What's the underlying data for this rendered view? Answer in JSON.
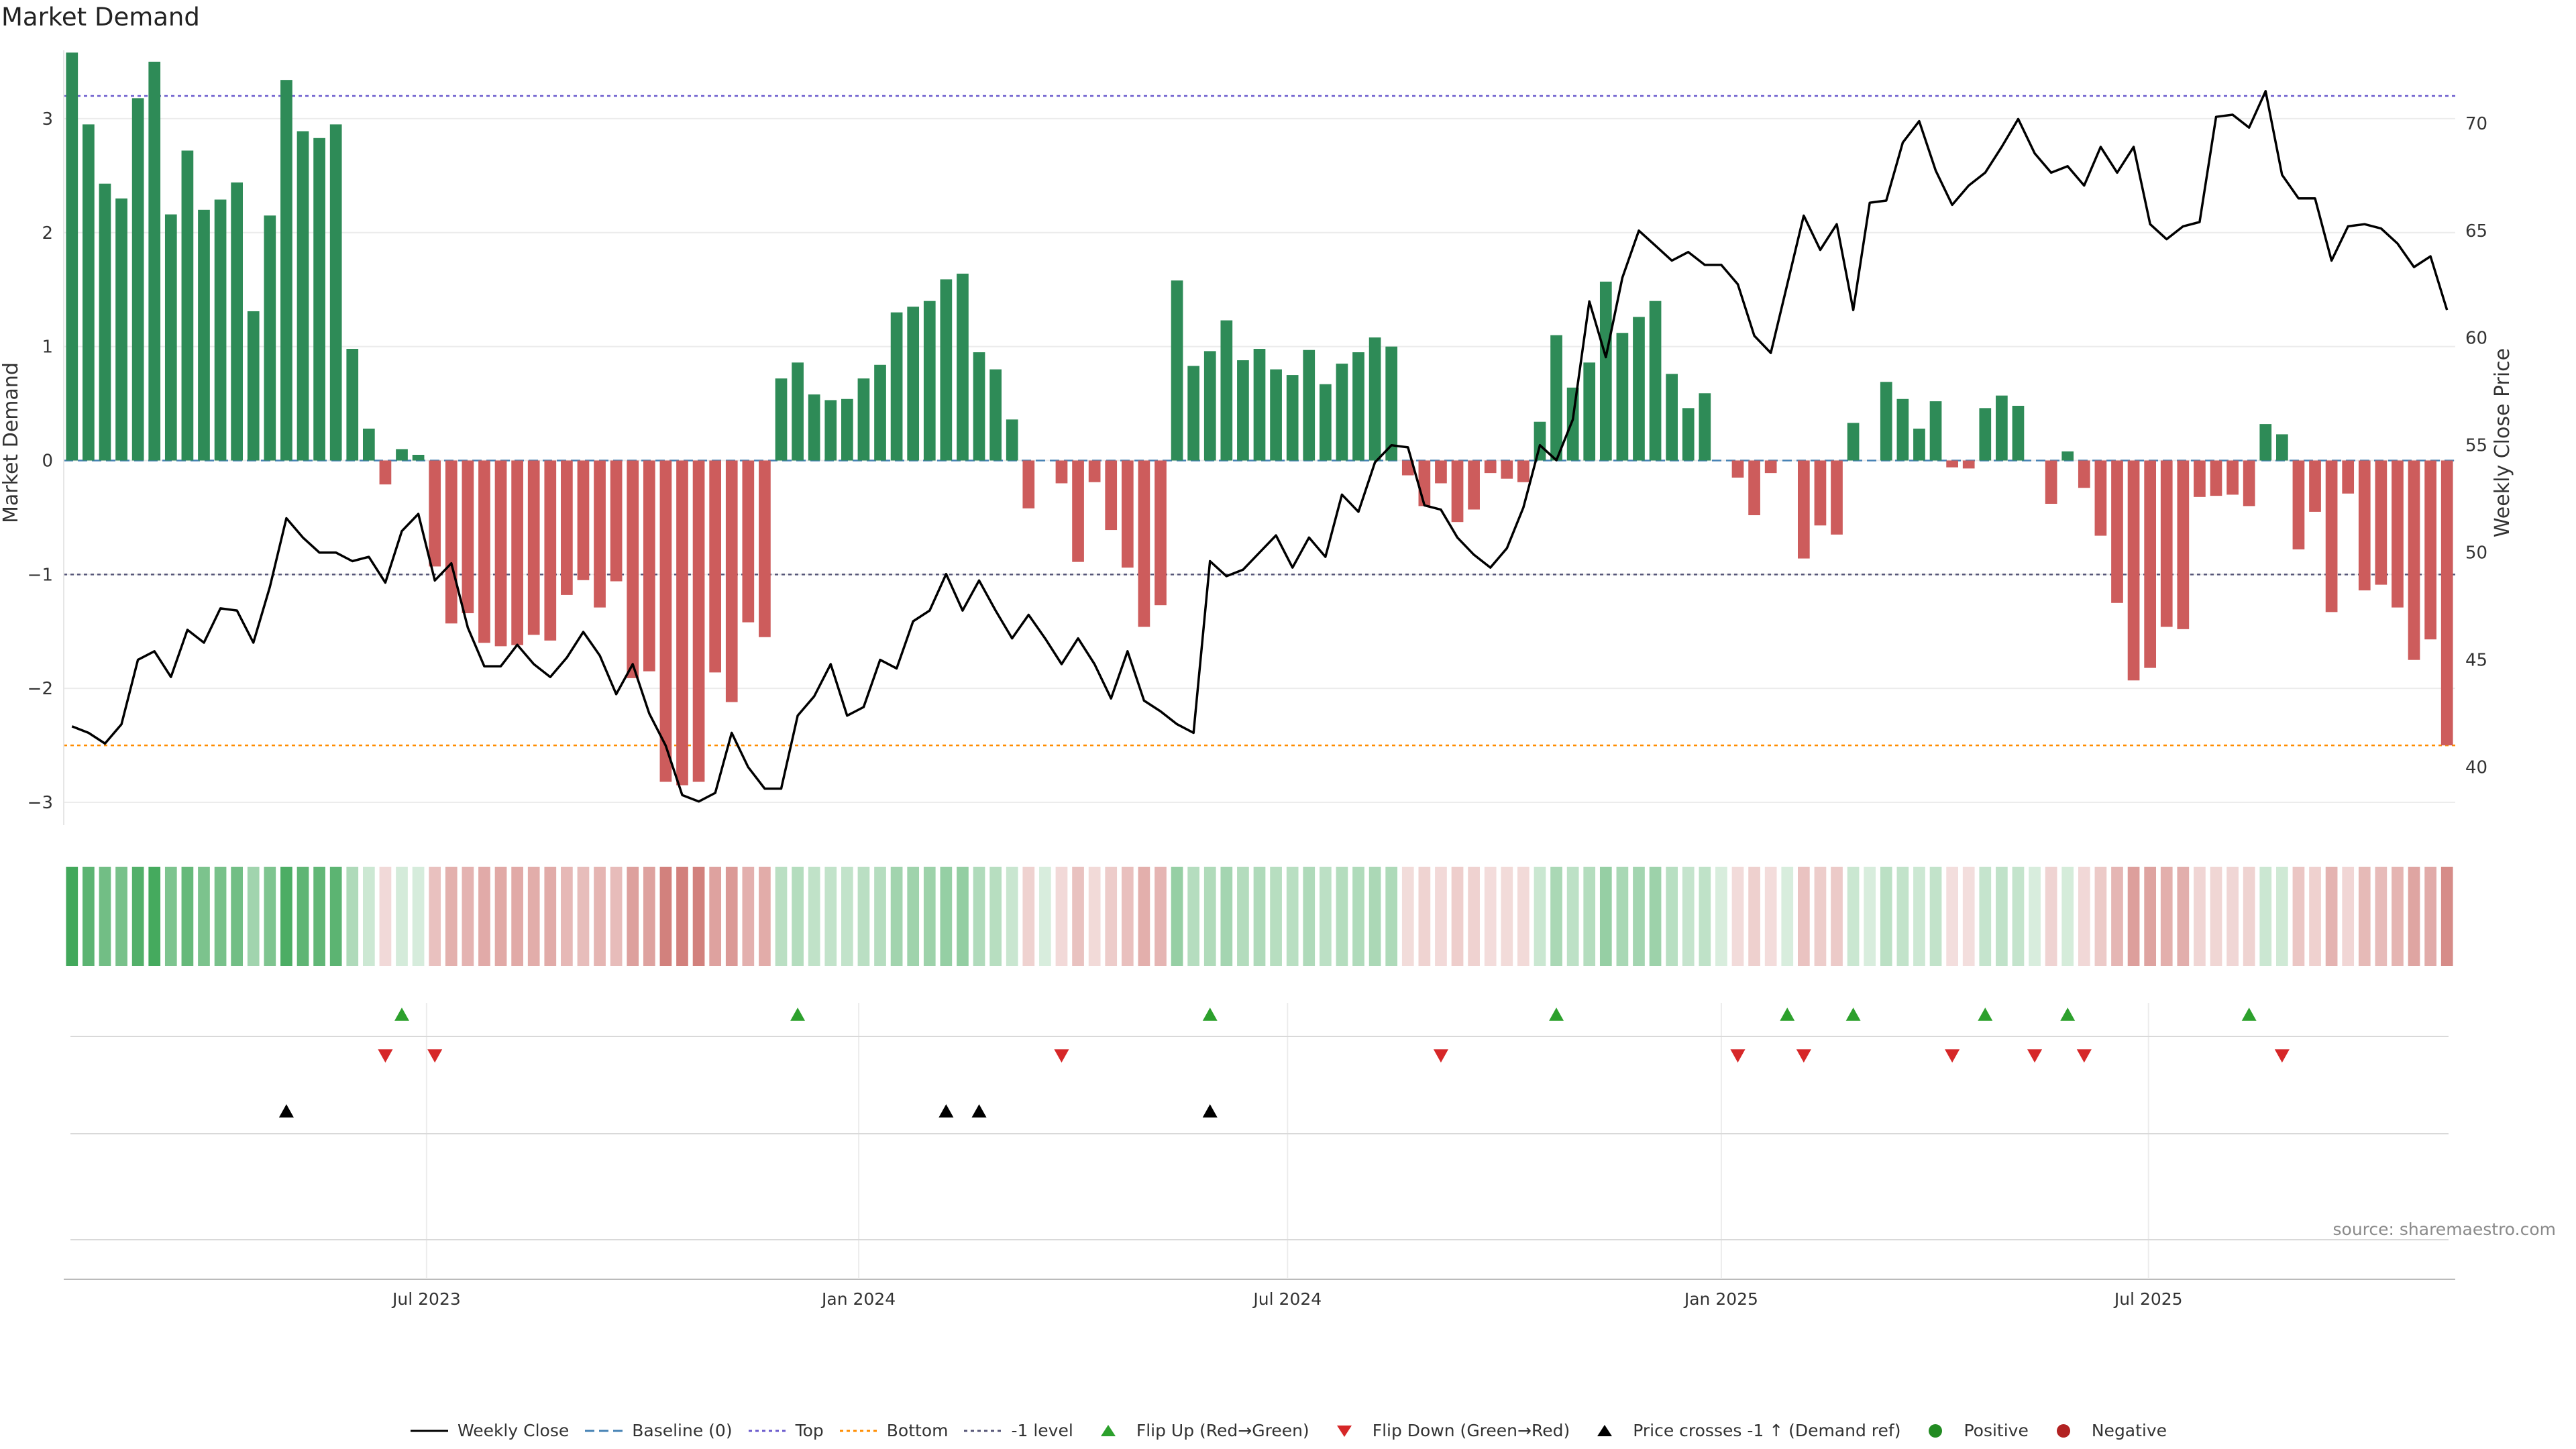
{
  "title": "Market Demand",
  "source": "source: sharemaestro.com",
  "colors": {
    "positive": "#2e8b57",
    "negative": "#cd5c5c",
    "price": "#000000",
    "top": "#6a5acd",
    "bottom": "#ff8c00",
    "minus1": "#555577",
    "baseline": "#4682b4",
    "flip_up": "#2ca02c",
    "flip_down": "#d62728"
  },
  "legend": [
    {
      "key": "weekly_close",
      "label": "Weekly Close"
    },
    {
      "key": "baseline",
      "label": "Baseline (0)"
    },
    {
      "key": "top",
      "label": "Top"
    },
    {
      "key": "bottom",
      "label": "Bottom"
    },
    {
      "key": "minus1",
      "label": "-1 level"
    },
    {
      "key": "flip_up",
      "label": "Flip Up (Red→Green)"
    },
    {
      "key": "flip_down",
      "label": "Flip Down (Green→Red)"
    },
    {
      "key": "cross",
      "label": "Price crosses -1 ↑ (Demand ref)"
    },
    {
      "key": "positive",
      "label": "Positive"
    },
    {
      "key": "negative",
      "label": "Negative"
    }
  ],
  "chart_data": {
    "type": "bar",
    "title": "Market Demand",
    "ylabel": "Market Demand",
    "y2label": "Weekly Close Price",
    "ylim": [
      -3.2,
      3.6
    ],
    "y2lim": [
      37.3,
      73.4
    ],
    "yticks": [
      -3,
      -2,
      -1,
      0,
      1,
      2,
      3
    ],
    "y2ticks": [
      40,
      45,
      50,
      55,
      60,
      65,
      70
    ],
    "levels": {
      "top": 3.2,
      "bottom": -2.5,
      "minus1": -1,
      "baseline": 0
    },
    "x_tick_labels": [
      {
        "label": "Jul 2023",
        "week": 21.5
      },
      {
        "label": "Jan 2024",
        "week": 47.7
      },
      {
        "label": "Jul 2024",
        "week": 73.7
      },
      {
        "label": "Jan 2025",
        "week": 100.0
      },
      {
        "label": "Jul 2025",
        "week": 125.9
      }
    ],
    "demand": [
      3.58,
      2.95,
      2.43,
      2.3,
      3.18,
      3.5,
      2.16,
      2.72,
      2.2,
      2.29,
      2.44,
      1.31,
      2.15,
      3.34,
      2.89,
      2.83,
      2.95,
      0.98,
      0.28,
      -0.21,
      0.1,
      0.05,
      -0.93,
      -1.43,
      -1.34,
      -1.6,
      -1.63,
      -1.62,
      -1.53,
      -1.58,
      -1.18,
      -1.05,
      -1.29,
      -1.06,
      -1.91,
      -1.85,
      -2.82,
      -2.85,
      -2.82,
      -1.86,
      -2.12,
      -1.42,
      -1.55,
      0.72,
      0.86,
      0.58,
      0.53,
      0.54,
      0.72,
      0.84,
      1.3,
      1.35,
      1.4,
      1.59,
      1.64,
      0.95,
      0.8,
      0.36,
      -0.42,
      0.0,
      -0.2,
      -0.89,
      -0.19,
      -0.61,
      -0.94,
      -1.46,
      -1.27,
      1.58,
      0.83,
      0.96,
      1.23,
      0.88,
      0.98,
      0.8,
      0.75,
      0.97,
      0.67,
      0.85,
      0.95,
      1.08,
      1.0,
      -0.13,
      -0.4,
      -0.2,
      -0.54,
      -0.43,
      -0.11,
      -0.16,
      -0.19,
      0.34,
      1.1,
      0.64,
      0.86,
      1.57,
      1.12,
      1.26,
      1.4,
      0.76,
      0.46,
      0.59,
      0.0,
      -0.15,
      -0.48,
      -0.11,
      0.0,
      -0.86,
      -0.57,
      -0.65,
      0.33,
      0.0,
      0.69,
      0.54,
      0.28,
      0.52,
      -0.06,
      -0.07,
      0.46,
      0.57,
      0.48,
      0.0,
      -0.38,
      0.08,
      -0.24,
      -0.66,
      -1.25,
      -1.93,
      -1.82,
      -1.46,
      -1.48,
      -0.32,
      -0.31,
      -0.3,
      -0.4,
      0.32,
      0.23,
      -0.78,
      -0.45,
      -1.33,
      -0.29,
      -1.14,
      -1.09,
      -1.29,
      -1.75,
      -1.57,
      -2.5
    ],
    "close": [
      41.9,
      41.6,
      41.1,
      42.0,
      45.0,
      45.4,
      44.2,
      46.4,
      45.8,
      47.4,
      47.3,
      45.8,
      48.4,
      51.6,
      50.7,
      50.0,
      50.0,
      49.6,
      49.8,
      48.6,
      51.0,
      51.8,
      48.7,
      49.5,
      46.5,
      44.7,
      44.7,
      45.7,
      44.8,
      44.2,
      45.1,
      46.3,
      45.2,
      43.4,
      44.8,
      42.5,
      41.0,
      38.7,
      38.4,
      38.8,
      41.6,
      40.0,
      39.0,
      39.0,
      42.4,
      43.3,
      44.8,
      42.4,
      42.8,
      45.0,
      44.6,
      46.8,
      47.3,
      49.0,
      47.3,
      48.7,
      47.3,
      46.0,
      47.1,
      46.0,
      44.8,
      46.0,
      44.8,
      43.2,
      45.4,
      43.1,
      42.6,
      42.0,
      41.6,
      49.6,
      48.9,
      49.2,
      50.0,
      50.8,
      49.3,
      50.7,
      49.8,
      52.7,
      51.9,
      54.2,
      55.0,
      54.9,
      52.2,
      52.0,
      50.7,
      49.9,
      49.3,
      50.2,
      52.1,
      55.0,
      54.3,
      56.2,
      61.7,
      59.1,
      62.8,
      65.0,
      64.3,
      63.6,
      64.0,
      63.4,
      63.4,
      62.5,
      60.1,
      59.3,
      62.5,
      65.7,
      64.1,
      65.3,
      61.3,
      66.3,
      66.4,
      69.1,
      70.1,
      67.8,
      66.2,
      67.1,
      67.7,
      68.9,
      70.2,
      68.6,
      67.7,
      68.0,
      67.1,
      68.9,
      67.7,
      68.9,
      65.3,
      64.6,
      65.2,
      65.4,
      70.3,
      70.4,
      69.8,
      71.5,
      67.6,
      66.5,
      66.5,
      63.6,
      65.2,
      65.3,
      65.1,
      64.4,
      63.3,
      63.8,
      61.3
    ],
    "flip_up_weeks": [
      20,
      44,
      69,
      90,
      104,
      108,
      116,
      121,
      132
    ],
    "flip_down_weeks": [
      19,
      22,
      60,
      83,
      101,
      105,
      114,
      119,
      122,
      134
    ],
    "cross_weeks": [
      13,
      53,
      55,
      69
    ]
  }
}
